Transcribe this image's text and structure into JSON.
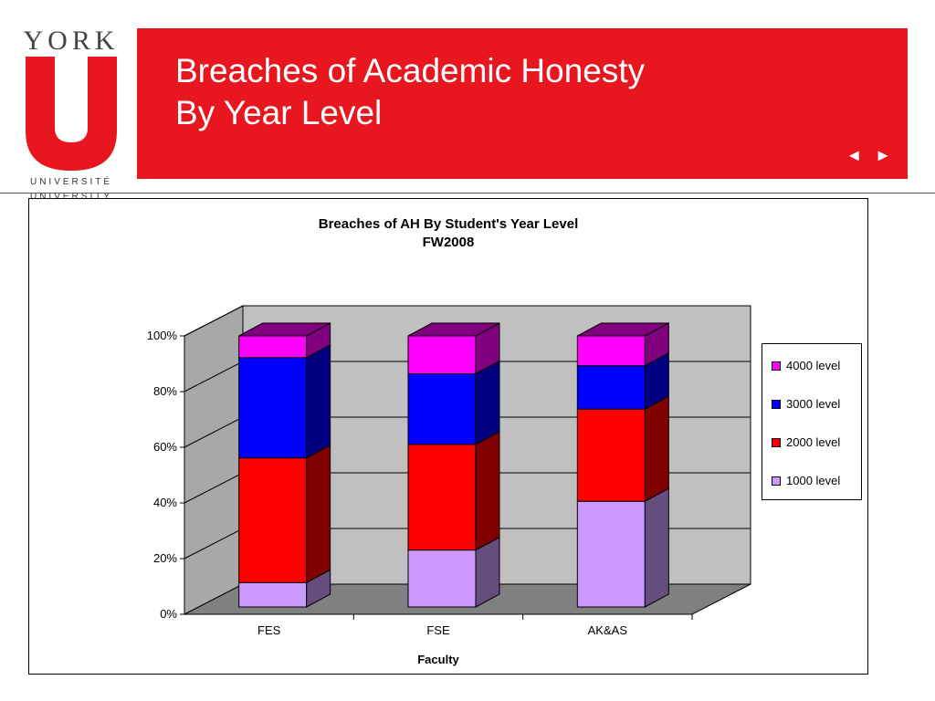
{
  "logo": {
    "top_text": "YORK",
    "mark": "U",
    "line1": "UNIVERSITÉ",
    "line2": "UNIVERSITY",
    "color": "#e8171f"
  },
  "header": {
    "title_line1": "Breaches of Academic Honesty",
    "title_line2": "By Year Level",
    "background": "#e8171f"
  },
  "nav": {
    "prev_icon": "◄",
    "next_icon": "►"
  },
  "chart_data": {
    "type": "bar",
    "stacked": "percent",
    "three_d": true,
    "title": "Breaches of AH By Student's Year Level",
    "subtitle": "FW2008",
    "xlabel": "Faculty",
    "ylabel": "",
    "categories": [
      "FES",
      "FSE",
      "AK&AS"
    ],
    "ylim": [
      0,
      100
    ],
    "yticks": [
      "0%",
      "20%",
      "40%",
      "60%",
      "80%",
      "100%"
    ],
    "grid": true,
    "legend_position": "right",
    "series": [
      {
        "name": "1000 level",
        "values": [
          9,
          21,
          39
        ],
        "color": "#cc99ff",
        "side": "#664d80",
        "top": "#a67acc"
      },
      {
        "name": "2000 level",
        "values": [
          46,
          39,
          34
        ],
        "color": "#ff0000",
        "side": "#800000",
        "top": "#cc0000"
      },
      {
        "name": "3000 level",
        "values": [
          37,
          26,
          16
        ],
        "color": "#0000ff",
        "side": "#000080",
        "top": "#0000cc"
      },
      {
        "name": "4000 level",
        "values": [
          8,
          14,
          11
        ],
        "color": "#ff00ff",
        "side": "#800080",
        "top": "#800080"
      }
    ]
  }
}
